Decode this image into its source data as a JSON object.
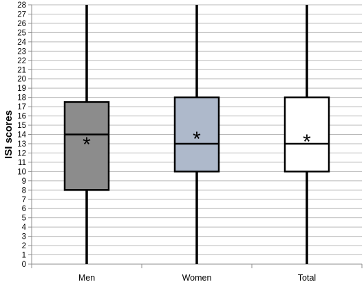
{
  "chart_data": {
    "type": "box",
    "title": "",
    "xlabel": "",
    "ylabel": "ISI scores",
    "ylim": [
      0,
      28
    ],
    "ytick_step": 1,
    "grid": true,
    "legend": "none",
    "categories": [
      "Men",
      "Women",
      "Total"
    ],
    "boxes": [
      {
        "category": "Men",
        "min": 0,
        "q1": 8,
        "median": 14,
        "q3": 17.5,
        "max": 28,
        "mean": 13.3,
        "mean_symbol": "*",
        "fill": "#8c8c8c"
      },
      {
        "category": "Women",
        "min": 0,
        "q1": 10,
        "median": 13,
        "q3": 18,
        "max": 28,
        "mean": 13.9,
        "mean_symbol": "*",
        "fill": "#aeb9cb"
      },
      {
        "category": "Total",
        "min": 0,
        "q1": 10,
        "median": 13,
        "q3": 18,
        "max": 28,
        "mean": 13.6,
        "mean_symbol": "*",
        "fill": "#ffffff"
      }
    ]
  }
}
